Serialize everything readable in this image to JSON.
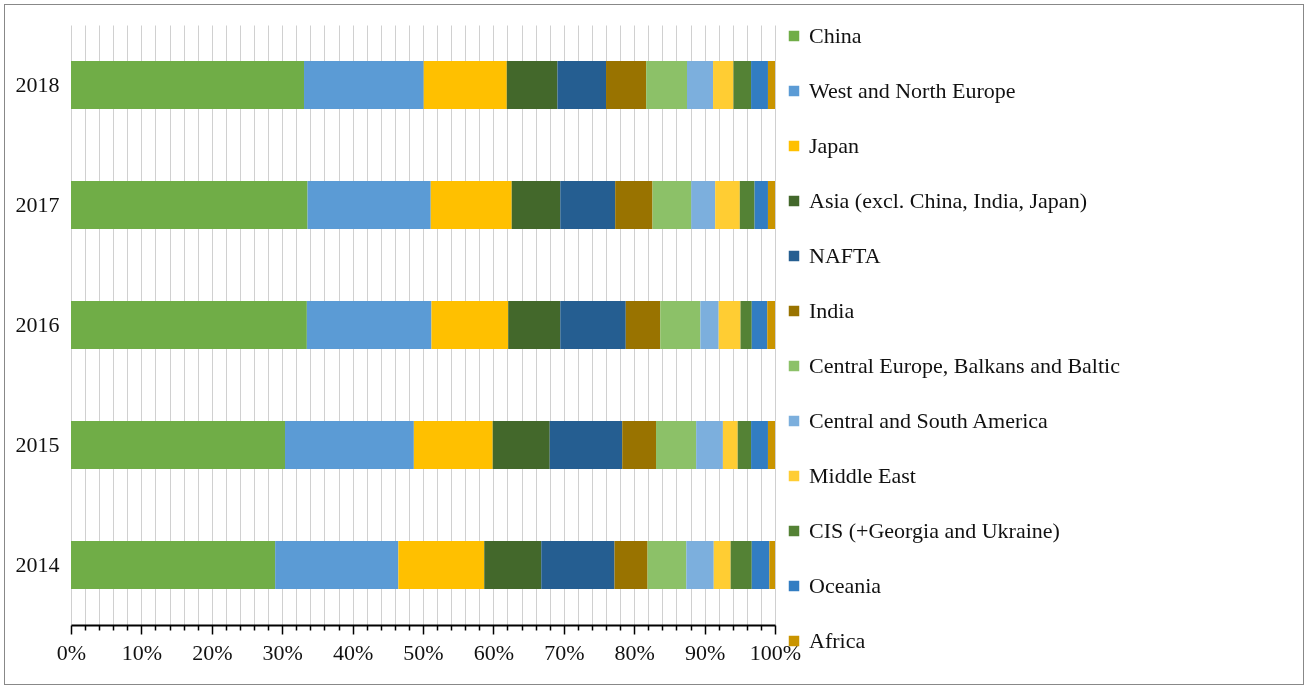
{
  "chart_data": {
    "type": "bar",
    "orientation": "horizontal",
    "stacked": true,
    "categories": [
      "2018",
      "2017",
      "2016",
      "2015",
      "2014"
    ],
    "xlim": [
      0,
      100
    ],
    "xticks": [
      {
        "value": 0,
        "label": "0%"
      },
      {
        "value": 2,
        "label": null
      },
      {
        "value": 4,
        "label": null
      },
      {
        "value": 6,
        "label": null
      },
      {
        "value": 8,
        "label": null
      },
      {
        "value": 10,
        "label": "10%"
      },
      {
        "value": 12,
        "label": null
      },
      {
        "value": 14,
        "label": null
      },
      {
        "value": 16,
        "label": null
      },
      {
        "value": 18,
        "label": null
      },
      {
        "value": 20,
        "label": "20%"
      },
      {
        "value": 22,
        "label": null
      },
      {
        "value": 24,
        "label": null
      },
      {
        "value": 26,
        "label": null
      },
      {
        "value": 28,
        "label": null
      },
      {
        "value": 30,
        "label": "30%"
      },
      {
        "value": 32,
        "label": null
      },
      {
        "value": 34,
        "label": null
      },
      {
        "value": 36,
        "label": null
      },
      {
        "value": 38,
        "label": null
      },
      {
        "value": 40,
        "label": "40%"
      },
      {
        "value": 42,
        "label": null
      },
      {
        "value": 44,
        "label": null
      },
      {
        "value": 46,
        "label": null
      },
      {
        "value": 48,
        "label": null
      },
      {
        "value": 50,
        "label": "50%"
      },
      {
        "value": 52,
        "label": null
      },
      {
        "value": 54,
        "label": null
      },
      {
        "value": 56,
        "label": null
      },
      {
        "value": 58,
        "label": null
      },
      {
        "value": 60,
        "label": "60%"
      },
      {
        "value": 62,
        "label": null
      },
      {
        "value": 64,
        "label": null
      },
      {
        "value": 66,
        "label": null
      },
      {
        "value": 68,
        "label": null
      },
      {
        "value": 70,
        "label": "70%"
      },
      {
        "value": 72,
        "label": null
      },
      {
        "value": 74,
        "label": null
      },
      {
        "value": 76,
        "label": null
      },
      {
        "value": 78,
        "label": null
      },
      {
        "value": 80,
        "label": "80%"
      },
      {
        "value": 82,
        "label": null
      },
      {
        "value": 84,
        "label": null
      },
      {
        "value": 86,
        "label": null
      },
      {
        "value": 88,
        "label": null
      },
      {
        "value": 90,
        "label": "90%"
      },
      {
        "value": 92,
        "label": null
      },
      {
        "value": 94,
        "label": null
      },
      {
        "value": 96,
        "label": null
      },
      {
        "value": 98,
        "label": null
      },
      {
        "value": 100,
        "label": "100%"
      }
    ],
    "grid": "x",
    "legend": "right",
    "series": [
      {
        "name": "China",
        "color": "#70ad47",
        "values": [
          33.1,
          33.6,
          33.5,
          30.4,
          29.0
        ]
      },
      {
        "name": "West and North Europe",
        "color": "#5b9bd5",
        "values": [
          17.0,
          17.5,
          17.7,
          18.3,
          17.5
        ]
      },
      {
        "name": "Japan",
        "color": "#ffc000",
        "values": [
          11.8,
          11.5,
          10.9,
          11.2,
          12.2
        ]
      },
      {
        "name": "Asia (excl. China, India, Japan)",
        "color": "#43682b",
        "values": [
          7.2,
          6.9,
          7.4,
          8.1,
          8.1
        ]
      },
      {
        "name": "NAFTA",
        "color": "#255e91",
        "values": [
          6.9,
          7.8,
          9.3,
          10.3,
          10.4
        ]
      },
      {
        "name": "India",
        "color": "#997300",
        "values": [
          5.7,
          5.3,
          4.9,
          4.8,
          4.7
        ]
      },
      {
        "name": "Central Europe, Balkans and Baltic",
        "color": "#8cc168",
        "values": [
          5.8,
          5.5,
          5.7,
          5.7,
          5.5
        ]
      },
      {
        "name": "Central and South America",
        "color": "#7cafdd",
        "values": [
          3.7,
          3.4,
          2.6,
          3.8,
          3.9
        ]
      },
      {
        "name": "Middle East",
        "color": "#ffcd33",
        "values": [
          2.9,
          3.5,
          3.1,
          2.1,
          2.4
        ]
      },
      {
        "name": "CIS (+Georgia and Ukraine)",
        "color": "#548235",
        "values": [
          2.5,
          2.1,
          1.6,
          1.9,
          3.0
        ]
      },
      {
        "name": "Oceania",
        "color": "#327dc2",
        "values": [
          2.4,
          1.9,
          2.2,
          2.4,
          2.5
        ]
      },
      {
        "name": "Africa",
        "color": "#c99400",
        "values": [
          1.0,
          1.0,
          1.1,
          1.0,
          0.8
        ]
      }
    ]
  }
}
